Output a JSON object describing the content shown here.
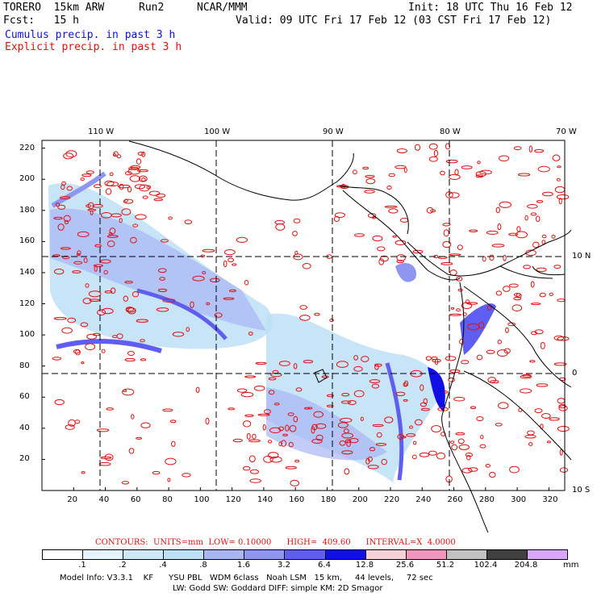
{
  "header": {
    "model": "TORERO  15km ARW",
    "run": "Run2",
    "org": "NCAR/MMM",
    "init": "Init: 18 UTC Thu 16 Feb 12",
    "fcst": "Fcst:   15 h",
    "valid": "Valid: 09 UTC Fri 17 Feb 12 (03 CST Fri 17 Feb 12)",
    "line_blue": "Cumulus precip. in past 3 h",
    "line_red": "Explicit precip. in past 3 h"
  },
  "map": {
    "top_lon_labels": [
      "110 W",
      "100 W",
      "90 W",
      "80 W",
      "70 W"
    ],
    "right_lat_labels": [
      "10 N",
      "0",
      "10 S"
    ],
    "left_grid_labels": [
      "220",
      "200",
      "180",
      "160",
      "140",
      "120",
      "100",
      "80",
      "60",
      "40",
      "20"
    ],
    "bottom_grid_labels": [
      "20",
      "40",
      "60",
      "80",
      "100",
      "120",
      "140",
      "160",
      "180",
      "200",
      "220",
      "240",
      "260",
      "280",
      "300",
      "320"
    ],
    "grid_x_max": 330,
    "grid_y_max": 225
  },
  "footer": {
    "contours_line": "CONTOURS:  UNITS=mm  LOW= 0.10000      HIGH=  409.60      INTERVAL=X  4.0000",
    "legend_colors": [
      "#ffffff",
      "#e6f4fb",
      "#cfe8f8",
      "#bde0f6",
      "#a9b6f4",
      "#8f96f1",
      "#5f5ef0",
      "#1010e6",
      "#f6d2d8",
      "#f396bd",
      "#c2c2c2",
      "#404040",
      "#d8a8f6"
    ],
    "legend_labels": [
      ".1",
      ".2",
      ".4",
      ".8",
      "1.6",
      "3.2",
      "6.4",
      "12.8",
      "25.6",
      "51.2",
      "102.4",
      "204.8"
    ],
    "legend_unit": "mm",
    "info_line1": "Model Info: V3.3.1    KF      YSU PBL   WDM 6class   Noah LSM   15 km,     44 levels,     72 sec",
    "info_line2": "LW: Godd SW: Goddard DIFF: simple KM: 2D Smagor"
  }
}
